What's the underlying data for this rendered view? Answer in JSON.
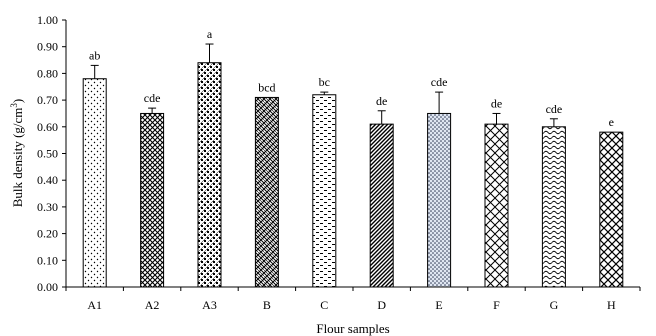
{
  "chart_data": {
    "type": "bar",
    "title": "",
    "xlabel": "Flour samples",
    "ylabel_main": "Bulk density (g/cm",
    "ylabel_sup": "3",
    "ylabel_close": ")",
    "ylim": [
      0,
      1.0
    ],
    "yticks": [
      "0.00",
      "0.10",
      "0.20",
      "0.30",
      "0.40",
      "0.50",
      "0.60",
      "0.70",
      "0.80",
      "0.90",
      "1.00"
    ],
    "categories": [
      "A1",
      "A2",
      "A3",
      "B",
      "C",
      "D",
      "E",
      "F",
      "G",
      "H"
    ],
    "values": [
      0.78,
      0.65,
      0.84,
      0.71,
      0.72,
      0.61,
      0.65,
      0.61,
      0.6,
      0.58
    ],
    "errors": [
      0.05,
      0.02,
      0.07,
      0.0,
      0.01,
      0.05,
      0.08,
      0.04,
      0.03,
      0.0
    ],
    "labels": [
      "ab",
      "cde",
      "a",
      "bcd",
      "bc",
      "de",
      "cde",
      "de",
      "cde",
      "e"
    ],
    "patterns": [
      "dots",
      "crosshatch",
      "checker",
      "weave",
      "dash",
      "diag-dense",
      "dots-fine",
      "diag-wide",
      "wave",
      "lattice"
    ],
    "grid": false,
    "legend": "none"
  }
}
